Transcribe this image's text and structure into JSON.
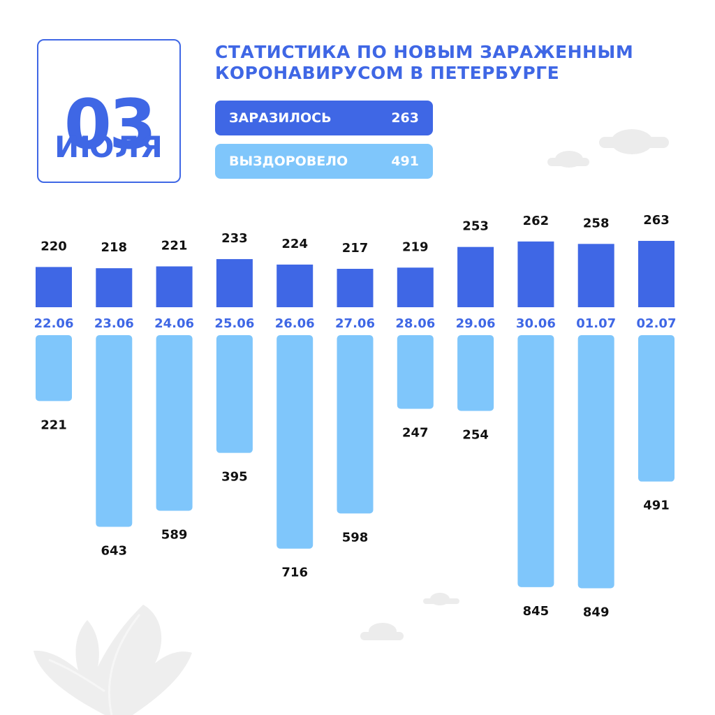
{
  "date": {
    "day": "03",
    "month": "ИЮЛЯ"
  },
  "title": {
    "line1": "СТАТИСТИКА ПО НОВЫМ ЗАРАЖЕННЫМ",
    "line2": "КОРОНАВИРУСОМ В ПЕТЕРБУРГЕ"
  },
  "summary": {
    "infected": {
      "label": "ЗАРАЗИЛОСЬ",
      "value": "263"
    },
    "recovered": {
      "label": "ВЫЗДОРОВЕЛО",
      "value": "491"
    }
  },
  "colors": {
    "infected": "#3f67e5",
    "recovered": "#7fc6fb",
    "date_label": "#3f67e5",
    "value_label": "#111111",
    "decor": "#ececec"
  },
  "chart_data": {
    "type": "bar",
    "categories": [
      "22.06",
      "23.06",
      "24.06",
      "25.06",
      "26.06",
      "27.06",
      "28.06",
      "29.06",
      "30.06",
      "01.07",
      "02.07"
    ],
    "series": [
      {
        "name": "ЗАРАЗИЛОСЬ",
        "values": [
          220,
          218,
          221,
          233,
          224,
          217,
          219,
          253,
          262,
          258,
          263
        ],
        "direction": "up"
      },
      {
        "name": "ВЫЗДОРОВЕЛО",
        "values": [
          221,
          643,
          589,
          395,
          716,
          598,
          247,
          254,
          845,
          849,
          491
        ],
        "direction": "down"
      }
    ],
    "legend": "top",
    "grid": false
  }
}
